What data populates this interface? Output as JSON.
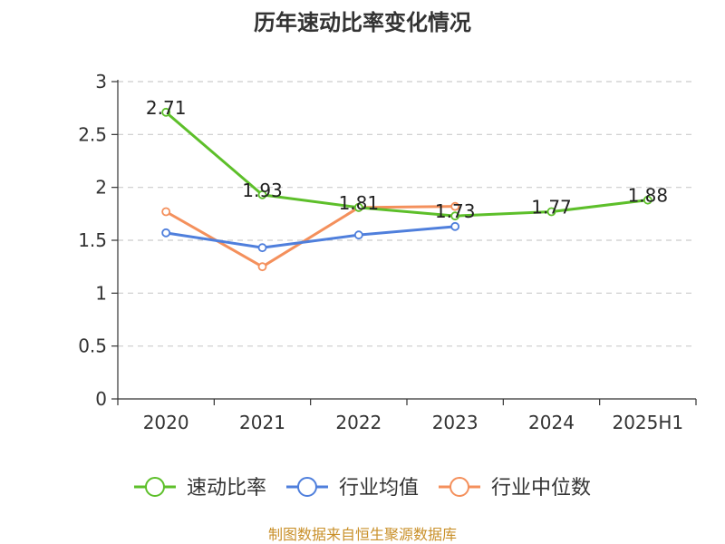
{
  "chart_data": {
    "type": "line",
    "title": "历年速动比率变化情况",
    "categories": [
      "2020",
      "2021",
      "2022",
      "2023",
      "2024",
      "2025H1"
    ],
    "ylim": [
      0,
      3
    ],
    "yticks": [
      "0",
      "0.5",
      "1",
      "1.5",
      "2",
      "2.5",
      "3"
    ],
    "grid": true,
    "legend_position": "bottom",
    "series": [
      {
        "name": "速动比率",
        "color": "#5dbf2a",
        "values": [
          2.71,
          1.93,
          1.81,
          1.73,
          1.77,
          1.88
        ],
        "labels": [
          "2.71",
          "1.93",
          "1.81",
          "1.73",
          "1.77",
          "1.88"
        ],
        "show_labels": true
      },
      {
        "name": "行业均值",
        "color": "#4f7fdc",
        "values": [
          1.57,
          1.43,
          1.55,
          1.63,
          null,
          null
        ],
        "show_labels": false
      },
      {
        "name": "行业中位数",
        "color": "#f4905c",
        "values": [
          1.77,
          1.25,
          1.81,
          1.82,
          null,
          null
        ],
        "show_labels": false
      }
    ]
  },
  "footer": {
    "source": "制图数据来自恒生聚源数据库",
    "source_color": "#c9902a"
  }
}
